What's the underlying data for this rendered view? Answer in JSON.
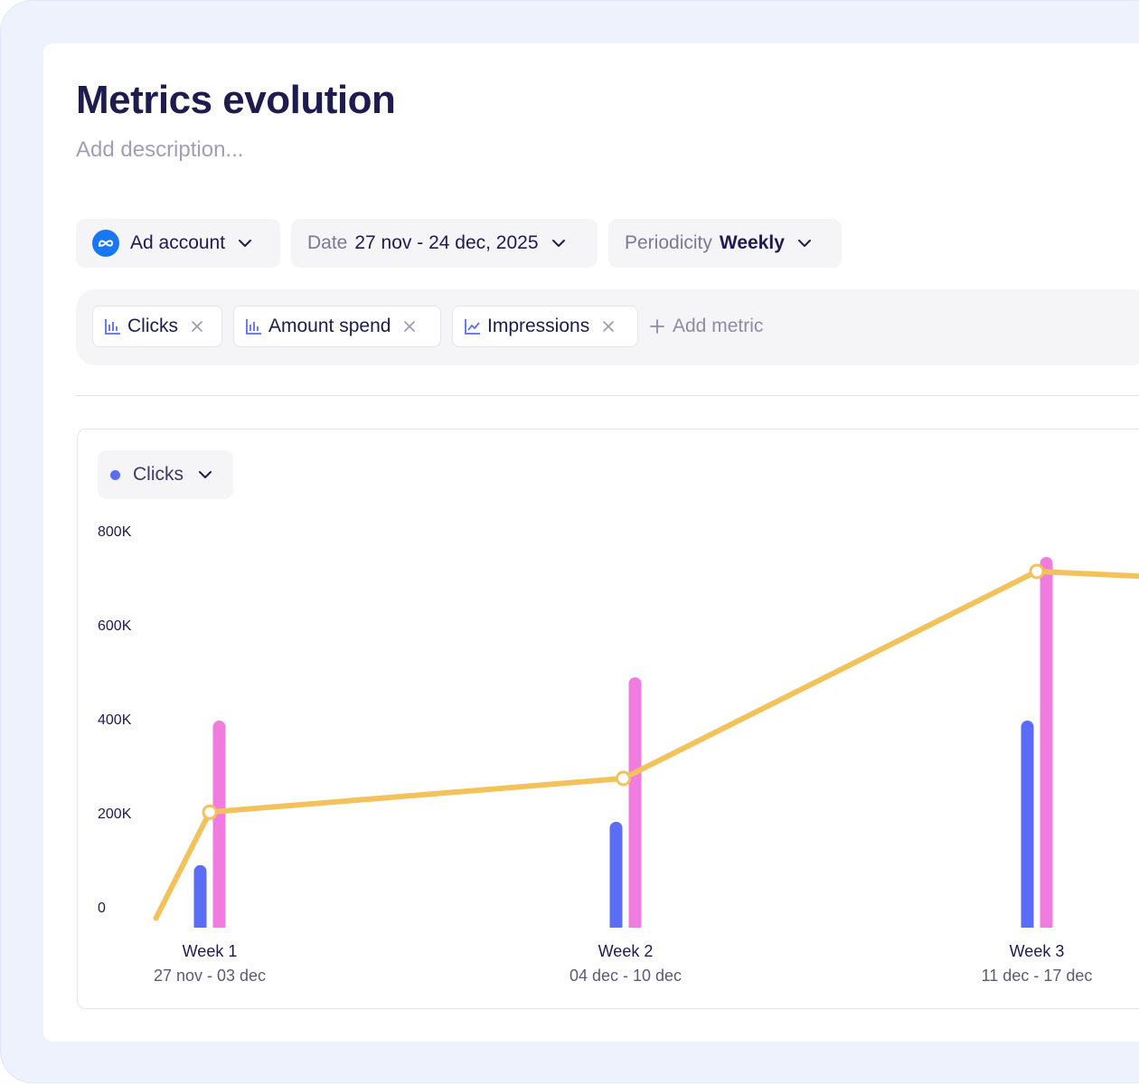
{
  "header": {
    "title": "Metrics evolution",
    "description_placeholder": "Add description..."
  },
  "filters": {
    "ad_account": {
      "label": "Ad account"
    },
    "date": {
      "label": "Date",
      "value": "27 nov - 24 dec, 2025"
    },
    "periodicity": {
      "label": "Periodicity",
      "value": "Weekly"
    }
  },
  "metrics": [
    {
      "label": "Clicks",
      "icon": "bar-chart-icon"
    },
    {
      "label": "Amount spend",
      "icon": "bar-chart-icon"
    },
    {
      "label": "Impressions",
      "icon": "line-chart-icon"
    }
  ],
  "add_metric_label": "Add metric",
  "series_selector": {
    "label": "Clicks",
    "color": "#5b6cf6"
  },
  "chart_data": {
    "type": "bar",
    "title": "",
    "xlabel": "",
    "ylabel": "",
    "ylim": [
      0,
      800000
    ],
    "y_ticks": [
      "800K",
      "600K",
      "400K",
      "200K",
      "0"
    ],
    "categories": [
      {
        "week": "Week 1",
        "range": "27 nov - 03 dec"
      },
      {
        "week": "Week 2",
        "range": "04 dec - 10 dec"
      },
      {
        "week": "Week 3",
        "range": "11 dec - 17 dec"
      }
    ],
    "series": [
      {
        "name": "Clicks",
        "type": "bar",
        "color": "#5b6cf6",
        "values": [
          130000,
          220000,
          430000
        ]
      },
      {
        "name": "Amount spend",
        "type": "bar",
        "color": "#f07ce0",
        "values": [
          430000,
          520000,
          770000
        ]
      },
      {
        "name": "Impressions",
        "type": "line",
        "color": "#f3c25a",
        "points": [
          {
            "x": -0.13,
            "y": 20000
          },
          {
            "x": 0,
            "y": 240000
          },
          {
            "x": 1,
            "y": 310000
          },
          {
            "x": 2,
            "y": 740000
          },
          {
            "x": 2.25,
            "y": 730000
          }
        ],
        "markers_at": [
          1,
          2,
          3
        ]
      }
    ]
  }
}
